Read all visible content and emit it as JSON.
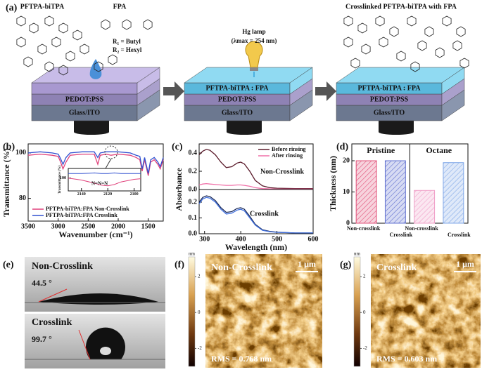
{
  "figure": {
    "panels": [
      "(a)",
      "(b)",
      "(c)",
      "(d)",
      "(e)",
      "(f)",
      "(g)"
    ],
    "a": {
      "molecule1": "PFTPA-biTPA",
      "molecule2": "FPA",
      "r1": "R₁ = Butyl",
      "r2": "R₂ = Hexyl",
      "lamp": "Hg lamp",
      "lamp_wavelength": "(λmax = 254 nm)",
      "product": "Crosslinked PFTPA-biTPA with FPA",
      "layers": [
        "PEDOT:PSS",
        "Glass/ITO",
        "PFTPA-biTPA : FPA"
      ]
    },
    "e": {
      "top_label": "Non-Crosslink",
      "top_angle": "44.5 °",
      "bottom_label": "Crosslink",
      "bottom_angle": "99.7 °"
    },
    "afm": {
      "colorbar_unit": "nm",
      "colorbar_lim": [
        -3,
        3.1
      ],
      "colorbar_ticks": [
        2,
        0,
        -2
      ],
      "scale_bar": "1 μm",
      "f": {
        "label": "Non-Crosslink",
        "rms": "RMS = 0.768 nm"
      },
      "g": {
        "label": "Crosslink",
        "rms": "RMS = 0.603 nm"
      }
    }
  },
  "chart_data": [
    {
      "type": "line",
      "xlabel": "Wavenumber (cm⁻¹)",
      "ylabel": "Transmittance (%)",
      "xlim": [
        3500,
        1250
      ],
      "ylim": [
        70,
        104
      ],
      "xticks": [
        3500,
        3000,
        2500,
        2000,
        1500
      ],
      "yticks": [
        80,
        100
      ],
      "legend": "lower left",
      "x": [
        3500,
        3300,
        3100,
        3000,
        2960,
        2920,
        2870,
        2800,
        2600,
        2400,
        2340,
        2300,
        2200,
        2120,
        2000,
        1800,
        1700,
        1640,
        1600,
        1560,
        1500,
        1460,
        1400,
        1340,
        1300,
        1250
      ],
      "series": [
        {
          "name": "PFTPA-biTPA:FPA Non-Crosslink",
          "color": "#e0407a",
          "values": [
            99,
            99.5,
            99,
            98.5,
            96,
            93,
            96,
            99,
            99.5,
            99.5,
            95,
            99,
            99.5,
            99,
            99.5,
            99,
            98,
            97,
            92,
            97,
            90,
            96,
            97,
            95,
            93,
            97
          ]
        },
        {
          "name": "PFTPA-biTPA:FPA Crosslink",
          "color": "#3050d0",
          "values": [
            100,
            100.5,
            100,
            99.5,
            97.5,
            95,
            98,
            100,
            100.5,
            100.5,
            98,
            100,
            100.5,
            100.5,
            100.5,
            100,
            99,
            98.5,
            93,
            98,
            91,
            97,
            98,
            96,
            94,
            98
          ]
        }
      ]
    },
    {
      "type": "line",
      "ylabel": "Transmittance (%)",
      "annotation": "N=N=N",
      "xlim": [
        2150,
        2095
      ],
      "ylim": [
        98,
        101.5
      ],
      "xticks": [
        2140,
        2120,
        2100
      ],
      "yticks": [
        100
      ],
      "x": [
        2150,
        2140,
        2130,
        2125,
        2120,
        2115,
        2110,
        2100,
        2095
      ],
      "series": [
        {
          "color": "#e0407a",
          "values": [
            100,
            99.7,
            99.2,
            98.9,
            98.8,
            99.0,
            99.4,
            99.8,
            99.9
          ]
        },
        {
          "color": "#3050d0",
          "values": [
            100.7,
            100.7,
            100.8,
            100.7,
            100.7,
            100.8,
            100.7,
            100.7,
            100.7
          ]
        }
      ]
    },
    {
      "type": "line",
      "ylabel": "Absorbance",
      "annotation": "Non-Crosslink",
      "legend": "upper right",
      "xlim": [
        285,
        600
      ],
      "ylim": [
        0,
        0.5
      ],
      "yticks": [
        {
          "value": 0,
          "label": "0.0"
        },
        {
          "value": 0.2,
          "label": "0.2"
        },
        {
          "value": 0.4,
          "label": "0.4"
        }
      ],
      "x": [
        285,
        295,
        305,
        315,
        330,
        345,
        360,
        375,
        390,
        400,
        410,
        425,
        440,
        460,
        480,
        500,
        550,
        600
      ],
      "series": [
        {
          "name": "Before rinsing",
          "color": "#5a1a2a",
          "values": [
            0.38,
            0.42,
            0.44,
            0.43,
            0.38,
            0.3,
            0.24,
            0.25,
            0.29,
            0.3,
            0.28,
            0.2,
            0.1,
            0.04,
            0.02,
            0.015,
            0.01,
            0.01
          ]
        },
        {
          "name": "After rinsing",
          "color": "#f070a8",
          "values": [
            0.05,
            0.06,
            0.065,
            0.06,
            0.055,
            0.05,
            0.045,
            0.045,
            0.05,
            0.05,
            0.045,
            0.035,
            0.02,
            0.01,
            0.008,
            0.005,
            0.005,
            0.005
          ]
        }
      ]
    },
    {
      "type": "line",
      "xlabel": "Wavelength (nm)",
      "annotation": "Crosslink",
      "xlim": [
        285,
        600
      ],
      "ylim": [
        0,
        0.28
      ],
      "xticks": [
        300,
        400,
        500,
        600
      ],
      "yticks": [
        {
          "value": 0,
          "label": "0.0"
        },
        {
          "value": 0.1,
          "label": "0.1"
        },
        {
          "value": 0.2,
          "label": "0.2"
        }
      ],
      "x": [
        285,
        295,
        305,
        315,
        330,
        345,
        360,
        375,
        390,
        400,
        410,
        425,
        440,
        460,
        480,
        500,
        550,
        600
      ],
      "series": [
        {
          "color": "#1a2a5a",
          "values": [
            0.2,
            0.23,
            0.24,
            0.235,
            0.21,
            0.165,
            0.135,
            0.14,
            0.16,
            0.165,
            0.155,
            0.11,
            0.06,
            0.025,
            0.015,
            0.01,
            0.005,
            0.005
          ]
        },
        {
          "color": "#4070e0",
          "values": [
            0.19,
            0.22,
            0.23,
            0.225,
            0.2,
            0.155,
            0.125,
            0.13,
            0.15,
            0.155,
            0.145,
            0.1,
            0.055,
            0.022,
            0.013,
            0.009,
            0.005,
            0.005
          ]
        }
      ]
    },
    {
      "type": "bar",
      "ylabel": "Thickness (nm)",
      "ylim": [
        0,
        25.4
      ],
      "yticks": [
        0,
        10,
        20
      ],
      "groups": [
        "Pristine",
        "Octane"
      ],
      "categories": [
        "Non-crosslink",
        "Crosslink",
        "Non-crosslink",
        "Crosslink"
      ],
      "values": [
        20,
        20,
        10.5,
        19.4
      ],
      "colors": [
        "#e05078",
        "#6070d0",
        "#f0a0c8",
        "#80a8e8"
      ]
    }
  ]
}
